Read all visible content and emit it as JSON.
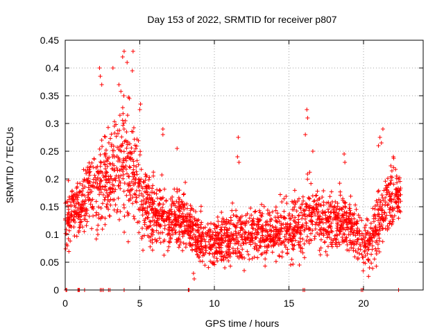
{
  "chart_data": {
    "type": "scatter",
    "title": "Day 153 of 2022, SRMTID for receiver p807",
    "xlabel": "GPS time / hours",
    "ylabel": "SRMTID / TECUs",
    "xlim": [
      0,
      24
    ],
    "ylim": [
      0,
      0.45
    ],
    "xticks": [
      0,
      5,
      10,
      15,
      20
    ],
    "xtick_labels": [
      "0",
      "5",
      "10",
      "15",
      "20"
    ],
    "yticks": [
      0,
      0.05,
      0.1,
      0.15,
      0.2,
      0.25,
      0.3,
      0.35,
      0.4,
      0.45
    ],
    "ytick_labels": [
      "0",
      "0.05",
      "0.1",
      "0.15",
      "0.2",
      "0.25",
      "0.3",
      "0.35",
      "0.4",
      "0.45"
    ],
    "grid": true,
    "marker": "+",
    "series": [
      {
        "name": "SRMTID",
        "color": "#ff0000",
        "trend": [
          [
            0.0,
            0.13
          ],
          [
            0.5,
            0.14
          ],
          [
            1.0,
            0.15
          ],
          [
            1.5,
            0.17
          ],
          [
            2.0,
            0.18
          ],
          [
            2.5,
            0.19
          ],
          [
            3.0,
            0.2
          ],
          [
            3.5,
            0.22
          ],
          [
            4.0,
            0.23
          ],
          [
            4.5,
            0.21
          ],
          [
            5.0,
            0.18
          ],
          [
            5.5,
            0.15
          ],
          [
            6.0,
            0.14
          ],
          [
            6.5,
            0.13
          ],
          [
            7.0,
            0.12
          ],
          [
            7.5,
            0.13
          ],
          [
            8.0,
            0.13
          ],
          [
            8.5,
            0.11
          ],
          [
            9.0,
            0.1
          ],
          [
            9.5,
            0.09
          ],
          [
            10.0,
            0.085
          ],
          [
            10.5,
            0.085
          ],
          [
            11.0,
            0.09
          ],
          [
            11.5,
            0.1
          ],
          [
            12.0,
            0.1
          ],
          [
            12.5,
            0.1
          ],
          [
            13.0,
            0.11
          ],
          [
            13.5,
            0.1
          ],
          [
            14.0,
            0.1
          ],
          [
            14.5,
            0.11
          ],
          [
            15.0,
            0.11
          ],
          [
            15.5,
            0.105
          ],
          [
            16.0,
            0.12
          ],
          [
            16.5,
            0.14
          ],
          [
            17.0,
            0.13
          ],
          [
            17.5,
            0.12
          ],
          [
            18.0,
            0.12
          ],
          [
            18.5,
            0.13
          ],
          [
            19.0,
            0.12
          ],
          [
            19.5,
            0.1
          ],
          [
            20.0,
            0.085
          ],
          [
            20.5,
            0.09
          ],
          [
            21.0,
            0.12
          ],
          [
            21.5,
            0.16
          ],
          [
            22.0,
            0.17
          ],
          [
            22.5,
            0.17
          ]
        ],
        "spread": [
          [
            0.0,
            0.05
          ],
          [
            1.0,
            0.05
          ],
          [
            2.0,
            0.07
          ],
          [
            3.0,
            0.08
          ],
          [
            4.0,
            0.1
          ],
          [
            5.0,
            0.07
          ],
          [
            6.0,
            0.05
          ],
          [
            8.0,
            0.04
          ],
          [
            10.0,
            0.04
          ],
          [
            12.0,
            0.04
          ],
          [
            14.0,
            0.04
          ],
          [
            16.0,
            0.05
          ],
          [
            17.0,
            0.05
          ],
          [
            19.0,
            0.04
          ],
          [
            20.0,
            0.04
          ],
          [
            21.0,
            0.06
          ],
          [
            22.5,
            0.05
          ]
        ],
        "n_points": 2400,
        "seed": 153,
        "spikes": [
          {
            "x": 2.3,
            "y": 0.4
          },
          {
            "x": 2.35,
            "y": 0.385
          },
          {
            "x": 2.45,
            "y": 0.37
          },
          {
            "x": 3.2,
            "y": 0.4
          },
          {
            "x": 3.6,
            "y": 0.37
          },
          {
            "x": 3.85,
            "y": 0.42
          },
          {
            "x": 3.95,
            "y": 0.43
          },
          {
            "x": 4.15,
            "y": 0.41
          },
          {
            "x": 4.55,
            "y": 0.43
          },
          {
            "x": 4.5,
            "y": 0.395
          },
          {
            "x": 4.3,
            "y": 0.345
          },
          {
            "x": 5.05,
            "y": 0.335
          },
          {
            "x": 5.0,
            "y": 0.325
          },
          {
            "x": 6.55,
            "y": 0.29
          },
          {
            "x": 6.55,
            "y": 0.28
          },
          {
            "x": 7.5,
            "y": 0.255
          },
          {
            "x": 11.6,
            "y": 0.275
          },
          {
            "x": 11.55,
            "y": 0.24
          },
          {
            "x": 11.65,
            "y": 0.23
          },
          {
            "x": 16.2,
            "y": 0.325
          },
          {
            "x": 16.25,
            "y": 0.31
          },
          {
            "x": 16.1,
            "y": 0.28
          },
          {
            "x": 16.6,
            "y": 0.25
          },
          {
            "x": 18.7,
            "y": 0.245
          },
          {
            "x": 18.75,
            "y": 0.23
          },
          {
            "x": 21.3,
            "y": 0.29
          },
          {
            "x": 21.1,
            "y": 0.275
          },
          {
            "x": 21.2,
            "y": 0.265
          },
          {
            "x": 21.0,
            "y": 0.26
          },
          {
            "x": 22.0,
            "y": 0.24
          },
          {
            "x": 8.65,
            "y": 0.02
          },
          {
            "x": 8.6,
            "y": 0.03
          },
          {
            "x": 10.7,
            "y": 0.04
          },
          {
            "x": 12.0,
            "y": 0.035
          },
          {
            "x": 15.7,
            "y": 0.045
          },
          {
            "x": 20.4,
            "y": 0.04
          }
        ],
        "zeros": [
          0.05,
          0.1,
          0.85,
          0.9,
          0.95,
          1.3,
          2.35,
          2.45,
          2.55,
          2.9,
          3.0,
          3.95,
          8.25,
          8.3,
          15.95,
          16.05,
          19.85,
          19.95,
          22.35
        ]
      }
    ]
  }
}
